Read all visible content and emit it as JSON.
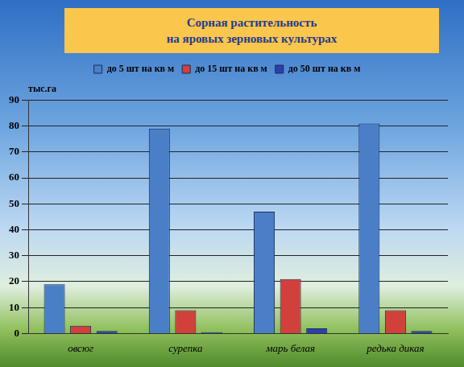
{
  "chart_data": {
    "type": "bar",
    "title": [
      "Сорная растительность",
      "на яровых зерновых культурах"
    ],
    "y_label": "тыс.га",
    "categories": [
      "овсюг",
      "сурепка",
      "марь белая",
      "редька дикая"
    ],
    "series": [
      {
        "name": "до 5 шт на кв м",
        "color": "#4a7fc8",
        "values": [
          19,
          79,
          47,
          81
        ]
      },
      {
        "name": "до 15 шт на кв м",
        "color": "#d2403c",
        "values": [
          3,
          9,
          21,
          9
        ]
      },
      {
        "name": "до 50 шт на кв м",
        "color": "#2d3fb0",
        "values": [
          1,
          0.5,
          2,
          1
        ]
      }
    ],
    "ylim": [
      0,
      90
    ],
    "yticks": [
      0,
      10,
      20,
      30,
      40,
      50,
      60,
      70,
      80,
      90
    ],
    "grid": true,
    "legend": "top"
  }
}
